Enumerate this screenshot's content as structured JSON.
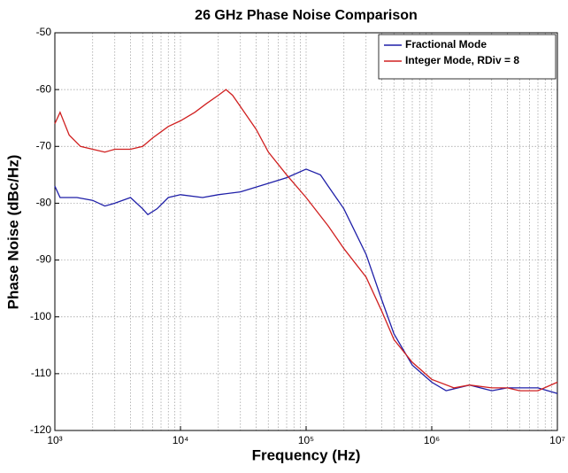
{
  "chart_data": {
    "type": "line",
    "title": "26 GHz Phase Noise Comparison",
    "xlabel": "Frequency (Hz)",
    "ylabel": "Phase Noise (dBc/Hz)",
    "xscale": "log",
    "grid": true,
    "minor_grid": true,
    "legend": "upper right",
    "xlim": [
      1000,
      10000000
    ],
    "xticks": [
      {
        "value": 1000,
        "label": "10³"
      },
      {
        "value": 10000,
        "label": "10⁴"
      },
      {
        "value": 100000,
        "label": "10⁵"
      },
      {
        "value": 1000000,
        "label": "10⁶"
      },
      {
        "value": 10000000,
        "label": "10⁷"
      }
    ],
    "ylim": [
      -120,
      -50
    ],
    "yticks": [
      -120,
      -110,
      -100,
      -90,
      -80,
      -70,
      -60,
      -50
    ],
    "series": [
      {
        "name": "Fractional Mode",
        "color": "#1f1fa8",
        "x": [
          1000,
          1100,
          1500,
          2000,
          2500,
          3000,
          4000,
          5000,
          5500,
          6500,
          8000,
          10000,
          15000,
          20000,
          30000,
          50000,
          70000,
          100000,
          130000,
          150000,
          200000,
          300000,
          400000,
          500000,
          700000,
          1000000,
          1300000,
          2000000,
          3000000,
          4000000,
          5000000,
          7000000,
          10000000
        ],
        "values": [
          -77,
          -79,
          -79,
          -79.5,
          -80.5,
          -80,
          -79,
          -81,
          -82,
          -81,
          -79,
          -78.5,
          -79,
          -78.5,
          -78,
          -76.5,
          -75.5,
          -74,
          -75,
          -77,
          -81,
          -89,
          -97,
          -103,
          -108.5,
          -111.5,
          -113,
          -112,
          -113,
          -112.5,
          -112.5,
          -112.5,
          -113.5
        ]
      },
      {
        "name": "Integer Mode, RDiv = 8",
        "color": "#d02020",
        "x": [
          1000,
          1100,
          1300,
          1600,
          2000,
          2500,
          3000,
          4000,
          5000,
          6000,
          8000,
          10000,
          13000,
          16000,
          20000,
          23000,
          26000,
          30000,
          40000,
          50000,
          70000,
          100000,
          150000,
          200000,
          300000,
          400000,
          500000,
          700000,
          1000000,
          1500000,
          2000000,
          3000000,
          4000000,
          5000000,
          7000000,
          10000000
        ],
        "values": [
          -66,
          -64,
          -68,
          -70,
          -70.5,
          -71,
          -70.5,
          -70.5,
          -70,
          -68.5,
          -66.5,
          -65.5,
          -64,
          -62.5,
          -61,
          -60,
          -61,
          -63,
          -67,
          -71,
          -75,
          -79,
          -84,
          -88,
          -93,
          -99,
          -104,
          -108,
          -111,
          -112.5,
          -112,
          -112.5,
          -112.5,
          -113,
          -113,
          -111.5
        ]
      }
    ]
  }
}
